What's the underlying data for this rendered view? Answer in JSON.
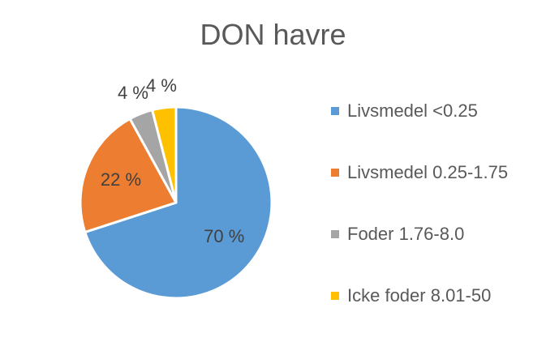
{
  "chart_data": {
    "type": "pie",
    "title": "DON havre",
    "categories": [
      "Livsmedel <0.25",
      "Livsmedel 0.25-1.75",
      "Foder 1.76-8.0",
      "Icke foder 8.01-50"
    ],
    "values": [
      70,
      22,
      4,
      4
    ],
    "data_labels": [
      "70 %",
      "22 %",
      "4 %",
      "4 %"
    ],
    "colors": [
      "#5B9BD5",
      "#ED7D31",
      "#A5A5A5",
      "#FFC000"
    ],
    "legend_position": "right",
    "start_angle": "top, clockwise"
  }
}
